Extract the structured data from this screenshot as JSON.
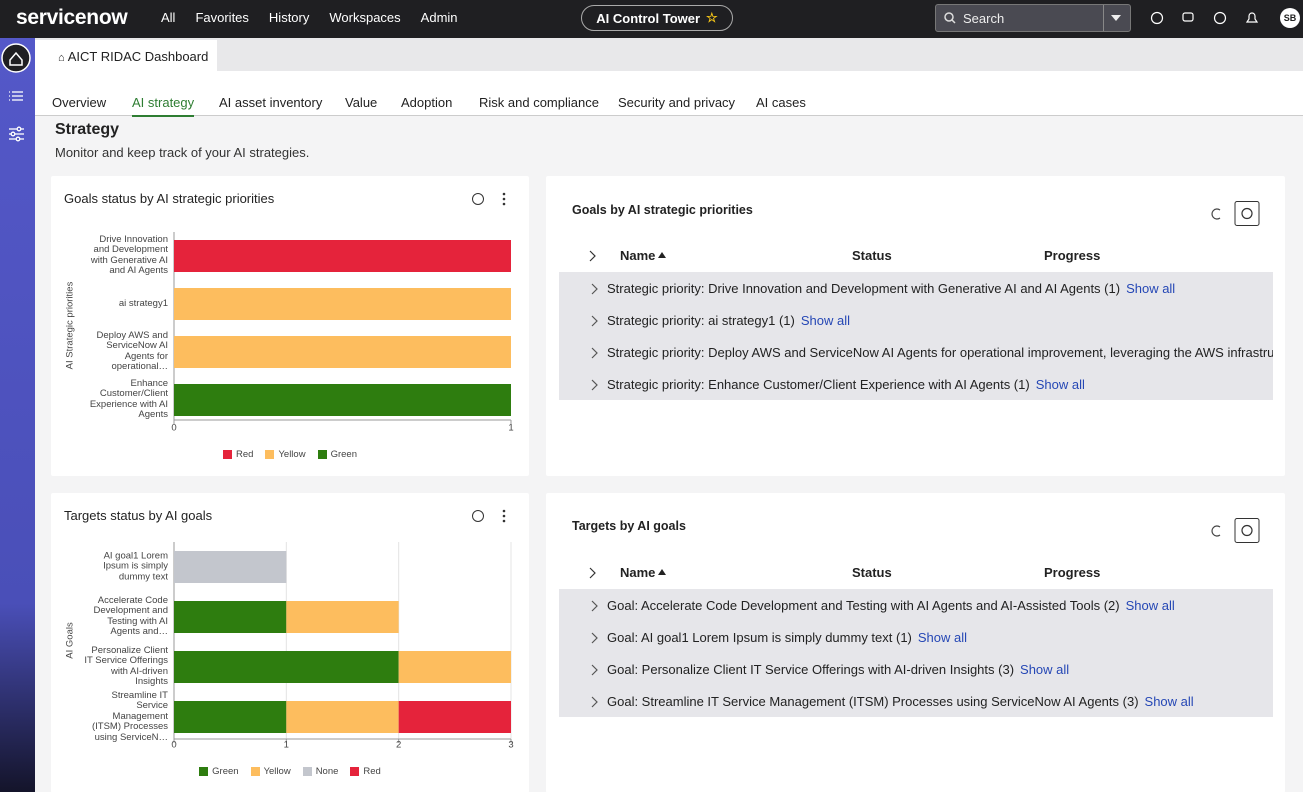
{
  "header": {
    "logo": "servicenow",
    "nav": [
      "All",
      "Favorites",
      "History",
      "Workspaces",
      "Admin"
    ],
    "workspace": "AI Control Tower",
    "search": "Search",
    "avatar": "SB"
  },
  "page_tab": "AICT RIDAC Dashboard",
  "tabs": [
    "Overview",
    "AI strategy",
    "AI asset inventory",
    "Value",
    "Adoption",
    "Risk and compliance",
    "Security and privacy",
    "AI cases"
  ],
  "active_tab": 1,
  "section": {
    "title": "Strategy",
    "description": "Monitor and keep track of your AI strategies."
  },
  "chart_data": [
    {
      "type": "bar",
      "orientation": "horizontal",
      "stacked": true,
      "title": "Goals status by AI strategic priorities",
      "y_label": "AI Strategic priorities",
      "categories": [
        "Drive Innovation and Development with Generative AI and AI Agents",
        "ai strategy1",
        "Deploy AWS and ServiceNow AI Agents for operational…",
        "Enhance Customer/Client Experience with AI Agents"
      ],
      "series": [
        {
          "name": "Red",
          "color": "#e5233b",
          "values": [
            1,
            0,
            0,
            0
          ]
        },
        {
          "name": "Yellow",
          "color": "#fdbd5e",
          "values": [
            0,
            1,
            1,
            0
          ]
        },
        {
          "name": "Green",
          "color": "#2e7d0f",
          "values": [
            0,
            0,
            0,
            1
          ]
        }
      ],
      "xlim": [
        0,
        1
      ],
      "xticks": [
        0,
        1
      ],
      "grid": false
    },
    {
      "type": "bar",
      "orientation": "horizontal",
      "stacked": true,
      "title": "Targets status by AI goals",
      "y_label": "AI Goals",
      "categories": [
        "AI goal1 Lorem Ipsum is simply dummy text",
        "Accelerate Code Development and Testing with AI Agents and…",
        "Personalize Client IT Service Offerings with AI-driven Insights",
        "Streamline IT Service Management (ITSM) Processes using ServiceN…"
      ],
      "series": [
        {
          "name": "Green",
          "color": "#2e7d0f",
          "values": [
            0,
            1,
            2,
            1
          ]
        },
        {
          "name": "Yellow",
          "color": "#fdbd5e",
          "values": [
            0,
            1,
            1,
            1
          ]
        },
        {
          "name": "None",
          "color": "#c3c6cd",
          "values": [
            1,
            0,
            0,
            0
          ]
        },
        {
          "name": "Red",
          "color": "#e5233b",
          "values": [
            0,
            0,
            0,
            1
          ]
        }
      ],
      "xlim": [
        0,
        3
      ],
      "xticks": [
        0,
        1,
        2,
        3
      ],
      "grid": true
    }
  ],
  "tables": [
    {
      "title": "Goals by AI strategic priorities",
      "columns": [
        "Name",
        "Status",
        "Progress"
      ],
      "rows": [
        {
          "text": "Strategic priority: Drive Innovation and Development with Generative AI and AI Agents (1)",
          "link": "Show all"
        },
        {
          "text": "Strategic priority: ai strategy1 (1)",
          "link": "Show all"
        },
        {
          "text": "Strategic priority: Deploy AWS and ServiceNow AI Agents for operational improvement, leveraging the AWS infrastru…"
        },
        {
          "text": "Strategic priority: Enhance Customer/Client Experience with AI Agents (1)",
          "link": "Show all"
        }
      ]
    },
    {
      "title": "Targets by AI goals",
      "columns": [
        "Name",
        "Status",
        "Progress"
      ],
      "rows": [
        {
          "text": "Goal: Accelerate Code Development and Testing with AI Agents and AI-Assisted Tools (2)",
          "link": "Show all"
        },
        {
          "text": "Goal: AI goal1 Lorem Ipsum is simply dummy text (1)",
          "link": "Show all"
        },
        {
          "text": "Goal: Personalize Client IT Service Offerings with AI-driven Insights (3)",
          "link": "Show all"
        },
        {
          "text": "Goal: Streamline IT Service Management (ITSM) Processes using ServiceNow AI Agents (3)",
          "link": "Show all"
        }
      ]
    }
  ]
}
